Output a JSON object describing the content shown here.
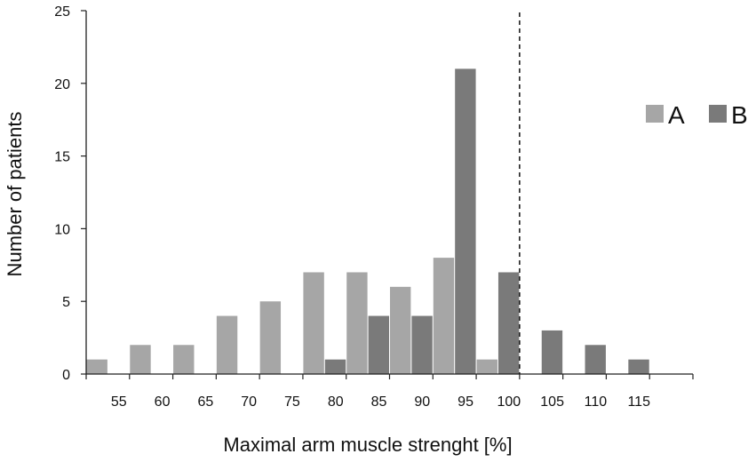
{
  "chart_data": {
    "type": "bar",
    "title": "",
    "xlabel": "Maximal arm muscle strenght  [%]",
    "ylabel": "Number of patients",
    "ylim": [
      0,
      25
    ],
    "yticks": [
      "0",
      "5",
      "10",
      "15",
      "20",
      "25"
    ],
    "bins": [
      50,
      55,
      60,
      65,
      70,
      75,
      80,
      85,
      90,
      95,
      100,
      105,
      110,
      115
    ],
    "xtick_labels": [
      "55",
      "60",
      "65",
      "70",
      "75",
      "80",
      "85",
      "90",
      "95",
      "100",
      "105",
      "110",
      "115"
    ],
    "series": [
      {
        "name": "A",
        "color": "#a6a6a6",
        "values": [
          1,
          2,
          2,
          4,
          5,
          7,
          7,
          6,
          8,
          1,
          0,
          0,
          0,
          0
        ]
      },
      {
        "name": "B",
        "color": "#7a7a7a",
        "values": [
          0,
          0,
          0,
          0,
          0,
          1,
          4,
          4,
          21,
          7,
          3,
          2,
          1,
          0
        ]
      }
    ],
    "reference_line": {
      "x": 100,
      "style": "dashed"
    },
    "legend_position": "right",
    "grid": false
  }
}
